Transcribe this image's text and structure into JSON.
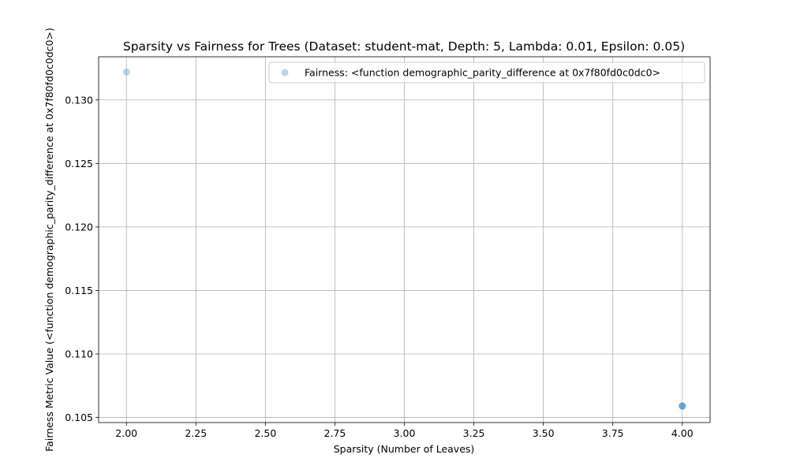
{
  "chart_data": {
    "type": "scatter",
    "title": "Sparsity vs Fairness for Trees (Dataset: student-mat, Depth: 5, Lambda: 0.01, Epsilon: 0.05)",
    "xlabel": "Sparsity (Number of Leaves)",
    "ylabel": "Fairness Metric Value (<function demographic_parity_difference at 0x7f80fd0c0dc0>)",
    "xlim": [
      1.9,
      4.1
    ],
    "ylim": [
      0.1046,
      0.1334
    ],
    "xticks": [
      2.0,
      2.25,
      2.5,
      2.75,
      3.0,
      3.25,
      3.5,
      3.75,
      4.0
    ],
    "xtick_labels": [
      "2.00",
      "2.25",
      "2.50",
      "2.75",
      "3.00",
      "3.25",
      "3.50",
      "3.75",
      "4.00"
    ],
    "yticks": [
      0.105,
      0.11,
      0.115,
      0.12,
      0.125,
      0.13
    ],
    "ytick_labels": [
      "0.105",
      "0.110",
      "0.115",
      "0.120",
      "0.125",
      "0.130"
    ],
    "grid": true,
    "legend_position": "top-right",
    "series": [
      {
        "name": "Fairness: <function demographic_parity_difference at 0x7f80fd0c0dc0>",
        "color": "#1f77b4",
        "points": [
          {
            "x": 2.0,
            "y": 0.1322
          },
          {
            "x": 4.0,
            "y": 0.1059
          },
          {
            "x": 4.0,
            "y": 0.1059
          },
          {
            "x": 4.0,
            "y": 0.1059
          }
        ]
      }
    ]
  }
}
